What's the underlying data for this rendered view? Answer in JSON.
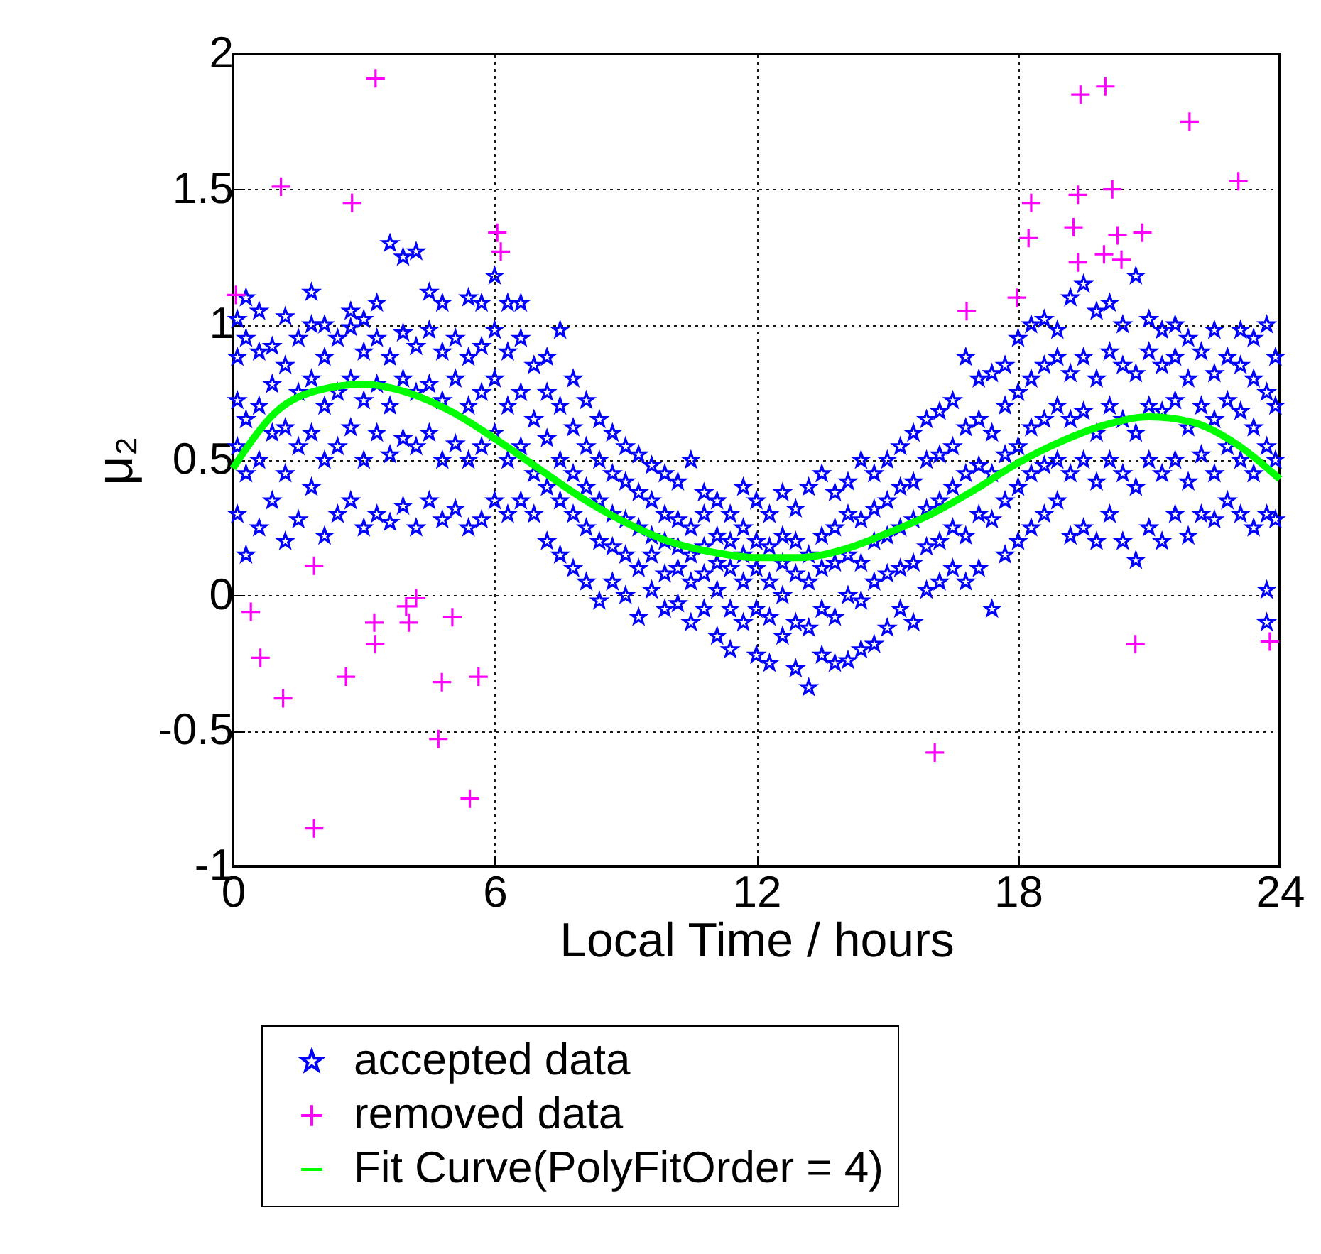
{
  "chart_data": {
    "type": "scatter",
    "xlabel": "Local Time / hours",
    "ylabel": "μ₂",
    "xlim": [
      0,
      24
    ],
    "xticks": [
      0,
      6,
      12,
      18,
      24
    ],
    "ylim": [
      -1,
      2
    ],
    "yticks": [
      -1,
      -0.5,
      0,
      0.5,
      1,
      1.5,
      2
    ],
    "grid": true,
    "legend": "bottom",
    "series": [
      {
        "name": "accepted data",
        "marker": "star",
        "color": "#0000ff",
        "x": [
          0.1,
          0.1,
          0.1,
          0.1,
          0.1,
          0.3,
          0.3,
          0.3,
          0.3,
          0.3,
          0.6,
          0.6,
          0.6,
          0.6,
          0.6,
          0.9,
          0.9,
          0.9,
          0.9,
          1.2,
          1.2,
          1.2,
          1.2,
          1.2,
          1.5,
          1.5,
          1.5,
          1.5,
          1.8,
          1.8,
          1.8,
          1.8,
          1.8,
          2.1,
          2.1,
          2.1,
          2.1,
          2.1,
          2.4,
          2.4,
          2.4,
          2.4,
          2.7,
          2.7,
          2.7,
          2.7,
          2.7,
          3.0,
          3.0,
          3.0,
          3.0,
          3.0,
          3.3,
          3.3,
          3.3,
          3.3,
          3.3,
          3.6,
          3.6,
          3.6,
          3.6,
          3.6,
          3.9,
          3.9,
          3.9,
          3.9,
          3.9,
          4.2,
          4.2,
          4.2,
          4.2,
          4.2,
          4.5,
          4.5,
          4.5,
          4.5,
          4.5,
          4.8,
          4.8,
          4.8,
          4.8,
          4.8,
          5.1,
          5.1,
          5.1,
          5.1,
          5.4,
          5.4,
          5.4,
          5.4,
          5.4,
          5.7,
          5.7,
          5.7,
          5.7,
          5.7,
          6.0,
          6.0,
          6.0,
          6.0,
          6.0,
          6.3,
          6.3,
          6.3,
          6.3,
          6.3,
          6.6,
          6.6,
          6.6,
          6.6,
          6.6,
          6.9,
          6.9,
          6.9,
          6.9,
          7.2,
          7.2,
          7.2,
          7.2,
          7.2,
          7.5,
          7.5,
          7.5,
          7.5,
          7.5,
          7.8,
          7.8,
          7.8,
          7.8,
          7.8,
          8.1,
          8.1,
          8.1,
          8.1,
          8.1,
          8.4,
          8.4,
          8.4,
          8.4,
          8.4,
          8.7,
          8.7,
          8.7,
          8.7,
          8.7,
          9.0,
          9.0,
          9.0,
          9.0,
          9.0,
          9.3,
          9.3,
          9.3,
          9.3,
          9.3,
          9.6,
          9.6,
          9.6,
          9.6,
          9.6,
          9.9,
          9.9,
          9.9,
          9.9,
          9.9,
          10.2,
          10.2,
          10.2,
          10.2,
          10.2,
          10.5,
          10.5,
          10.5,
          10.5,
          10.5,
          10.8,
          10.8,
          10.8,
          10.8,
          10.8,
          11.1,
          11.1,
          11.1,
          11.1,
          11.1,
          11.4,
          11.4,
          11.4,
          11.4,
          11.4,
          11.7,
          11.7,
          11.7,
          11.7,
          11.7,
          12.0,
          12.0,
          12.0,
          12.0,
          12.0,
          12.3,
          12.3,
          12.3,
          12.3,
          12.3,
          12.6,
          12.6,
          12.6,
          12.6,
          12.6,
          12.9,
          12.9,
          12.9,
          12.9,
          12.9,
          13.2,
          13.2,
          13.2,
          13.2,
          13.2,
          13.5,
          13.5,
          13.5,
          13.5,
          13.5,
          13.8,
          13.8,
          13.8,
          13.8,
          13.8,
          14.1,
          14.1,
          14.1,
          14.1,
          14.1,
          14.4,
          14.4,
          14.4,
          14.4,
          14.4,
          14.7,
          14.7,
          14.7,
          14.7,
          14.7,
          15.0,
          15.0,
          15.0,
          15.0,
          15.0,
          15.3,
          15.3,
          15.3,
          15.3,
          15.3,
          15.6,
          15.6,
          15.6,
          15.6,
          15.6,
          15.9,
          15.9,
          15.9,
          15.9,
          15.9,
          16.2,
          16.2,
          16.2,
          16.2,
          16.2,
          16.5,
          16.5,
          16.5,
          16.5,
          16.5,
          16.8,
          16.8,
          16.8,
          16.8,
          16.8,
          17.1,
          17.1,
          17.1,
          17.1,
          17.1,
          17.4,
          17.4,
          17.4,
          17.4,
          17.4,
          17.7,
          17.7,
          17.7,
          17.7,
          17.7,
          18.0,
          18.0,
          18.0,
          18.0,
          18.0,
          18.3,
          18.3,
          18.3,
          18.3,
          18.3,
          18.6,
          18.6,
          18.6,
          18.6,
          18.6,
          18.9,
          18.9,
          18.9,
          18.9,
          18.9,
          19.2,
          19.2,
          19.2,
          19.2,
          19.2,
          19.5,
          19.5,
          19.5,
          19.5,
          19.5,
          19.8,
          19.8,
          19.8,
          19.8,
          19.8,
          20.1,
          20.1,
          20.1,
          20.1,
          20.1,
          20.4,
          20.4,
          20.4,
          20.4,
          20.4,
          20.7,
          20.7,
          20.7,
          20.7,
          20.7,
          21.0,
          21.0,
          21.0,
          21.0,
          21.0,
          21.3,
          21.3,
          21.3,
          21.3,
          21.3,
          21.6,
          21.6,
          21.6,
          21.6,
          21.6,
          21.9,
          21.9,
          21.9,
          21.9,
          21.9,
          22.2,
          22.2,
          22.2,
          22.2,
          22.5,
          22.5,
          22.5,
          22.5,
          22.5,
          22.8,
          22.8,
          22.8,
          22.8,
          23.1,
          23.1,
          23.1,
          23.1,
          23.1,
          23.4,
          23.4,
          23.4,
          23.4,
          23.4,
          23.7,
          23.7,
          23.7,
          23.7,
          23.7,
          23.7,
          23.9,
          23.9,
          23.9,
          23.9
        ],
        "values": [
          0.3,
          0.55,
          0.72,
          0.88,
          1.02,
          0.15,
          0.45,
          0.65,
          0.95,
          1.1,
          0.25,
          0.5,
          0.7,
          0.9,
          1.05,
          0.35,
          0.6,
          0.78,
          0.92,
          0.2,
          0.45,
          0.62,
          0.85,
          1.03,
          0.28,
          0.55,
          0.75,
          0.95,
          0.4,
          0.6,
          0.8,
          1.0,
          1.12,
          0.22,
          0.5,
          0.7,
          0.88,
          1.0,
          0.3,
          0.55,
          0.75,
          0.95,
          0.35,
          0.62,
          0.8,
          0.99,
          1.05,
          0.25,
          0.5,
          0.72,
          0.9,
          1.02,
          0.3,
          0.6,
          0.78,
          0.95,
          1.08,
          0.27,
          0.52,
          0.7,
          0.88,
          1.3,
          0.33,
          0.58,
          0.8,
          0.97,
          1.25,
          0.25,
          0.55,
          0.75,
          0.92,
          1.27,
          0.35,
          0.6,
          0.78,
          0.98,
          1.12,
          0.28,
          0.5,
          0.72,
          0.9,
          1.08,
          0.32,
          0.56,
          0.8,
          0.95,
          0.25,
          0.5,
          0.7,
          0.88,
          1.1,
          0.28,
          0.55,
          0.75,
          0.92,
          1.08,
          0.35,
          0.6,
          0.8,
          0.98,
          1.18,
          0.3,
          0.5,
          0.7,
          0.9,
          1.08,
          0.35,
          0.55,
          0.75,
          0.95,
          1.08,
          0.3,
          0.45,
          0.65,
          0.85,
          0.2,
          0.4,
          0.58,
          0.75,
          0.88,
          0.15,
          0.35,
          0.5,
          0.7,
          0.98,
          0.1,
          0.3,
          0.45,
          0.62,
          0.8,
          0.05,
          0.25,
          0.4,
          0.55,
          0.72,
          -0.02,
          0.2,
          0.35,
          0.5,
          0.65,
          0.05,
          0.18,
          0.3,
          0.45,
          0.6,
          0.0,
          0.15,
          0.28,
          0.42,
          0.55,
          -0.08,
          0.1,
          0.25,
          0.38,
          0.52,
          0.02,
          0.15,
          0.22,
          0.35,
          0.48,
          -0.05,
          0.08,
          0.2,
          0.3,
          0.45,
          -0.03,
          0.1,
          0.18,
          0.28,
          0.42,
          -0.1,
          0.05,
          0.15,
          0.25,
          0.5,
          -0.05,
          0.08,
          0.18,
          0.3,
          0.38,
          -0.15,
          0.02,
          0.12,
          0.22,
          0.35,
          -0.2,
          -0.05,
          0.1,
          0.2,
          0.3,
          -0.1,
          0.05,
          0.15,
          0.25,
          0.4,
          -0.22,
          -0.05,
          0.1,
          0.2,
          0.35,
          -0.25,
          -0.08,
          0.05,
          0.18,
          0.3,
          -0.15,
          0.0,
          0.12,
          0.22,
          0.38,
          -0.27,
          -0.1,
          0.08,
          0.2,
          0.32,
          -0.34,
          -0.12,
          0.05,
          0.15,
          0.4,
          -0.22,
          -0.05,
          0.1,
          0.22,
          0.45,
          -0.25,
          -0.08,
          0.12,
          0.25,
          0.38,
          -0.24,
          0.0,
          0.15,
          0.3,
          0.42,
          -0.2,
          -0.02,
          0.12,
          0.28,
          0.5,
          -0.18,
          0.05,
          0.2,
          0.32,
          0.45,
          -0.12,
          0.08,
          0.22,
          0.35,
          0.5,
          -0.05,
          0.1,
          0.25,
          0.4,
          0.55,
          -0.1,
          0.12,
          0.28,
          0.42,
          0.6,
          0.02,
          0.18,
          0.32,
          0.5,
          0.65,
          0.05,
          0.2,
          0.35,
          0.52,
          0.68,
          0.1,
          0.25,
          0.4,
          0.55,
          0.72,
          0.05,
          0.22,
          0.45,
          0.62,
          0.88,
          0.1,
          0.3,
          0.48,
          0.65,
          0.8,
          -0.05,
          0.28,
          0.45,
          0.6,
          0.82,
          0.15,
          0.35,
          0.52,
          0.7,
          0.85,
          0.2,
          0.4,
          0.55,
          0.75,
          0.95,
          0.25,
          0.45,
          0.62,
          0.8,
          1.0,
          0.3,
          0.48,
          0.65,
          0.85,
          1.02,
          0.35,
          0.5,
          0.7,
          0.88,
          0.98,
          0.22,
          0.45,
          0.65,
          0.82,
          1.1,
          0.25,
          0.5,
          0.68,
          0.88,
          1.15,
          0.2,
          0.42,
          0.6,
          0.8,
          1.05,
          0.3,
          0.5,
          0.7,
          0.9,
          1.08,
          0.2,
          0.45,
          0.65,
          0.85,
          1.0,
          0.13,
          0.4,
          0.6,
          0.82,
          1.18,
          0.25,
          0.5,
          0.7,
          0.9,
          1.02,
          0.2,
          0.45,
          0.68,
          0.85,
          0.98,
          0.3,
          0.5,
          0.72,
          0.88,
          1.0,
          0.22,
          0.42,
          0.62,
          0.8,
          0.95,
          0.3,
          0.52,
          0.7,
          0.9,
          0.28,
          0.45,
          0.65,
          0.82,
          0.98,
          0.35,
          0.55,
          0.72,
          0.88,
          0.3,
          0.5,
          0.68,
          0.85,
          0.98,
          0.25,
          0.45,
          0.62,
          0.8,
          0.95,
          -0.1,
          0.02,
          0.3,
          0.55,
          0.75,
          1.0,
          0.28,
          0.5,
          0.7,
          0.88
        ]
      },
      {
        "name": "removed data",
        "marker": "cross",
        "color": "#ff00ff",
        "x": [
          3.27,
          1.1,
          2.73,
          6.06,
          6.14,
          0.07,
          19.43,
          20.0,
          21.93,
          23.05,
          19.37,
          20.16,
          18.3,
          18.24,
          19.27,
          20.28,
          20.85,
          19.37,
          19.97,
          20.37,
          17.97,
          16.82,
          1.86,
          0.41,
          0.63,
          1.15,
          2.59,
          3.24,
          3.26,
          3.97,
          4.03,
          4.2,
          5.03,
          4.79,
          5.63,
          4.71,
          5.43,
          1.86,
          16.09,
          20.69,
          23.77
        ],
        "values": [
          1.91,
          1.51,
          1.45,
          1.34,
          1.27,
          1.11,
          1.85,
          1.88,
          1.75,
          1.53,
          1.48,
          1.5,
          1.45,
          1.32,
          1.36,
          1.33,
          1.34,
          1.23,
          1.26,
          1.24,
          1.1,
          1.05,
          0.11,
          -0.06,
          -0.23,
          -0.38,
          -0.3,
          -0.1,
          -0.18,
          -0.04,
          -0.1,
          -0.01,
          -0.08,
          -0.32,
          -0.3,
          -0.53,
          -0.75,
          -0.86,
          -0.58,
          -0.18,
          -0.17
        ]
      },
      {
        "name": "Fit Curve(PolyFitOrder = 4)",
        "type": "line",
        "marker": "none",
        "line_style": "solid",
        "color": "#00ff00",
        "x": [
          0,
          1,
          2,
          3,
          4,
          5,
          6,
          7,
          8,
          9,
          10,
          11,
          12,
          13,
          14,
          15,
          16,
          17,
          18,
          19,
          20,
          21,
          22,
          23,
          24
        ],
        "values": [
          0.47,
          0.68,
          0.76,
          0.78,
          0.75,
          0.68,
          0.58,
          0.47,
          0.36,
          0.27,
          0.2,
          0.16,
          0.14,
          0.14,
          0.17,
          0.23,
          0.3,
          0.39,
          0.49,
          0.57,
          0.63,
          0.66,
          0.64,
          0.56,
          0.43
        ]
      }
    ]
  }
}
